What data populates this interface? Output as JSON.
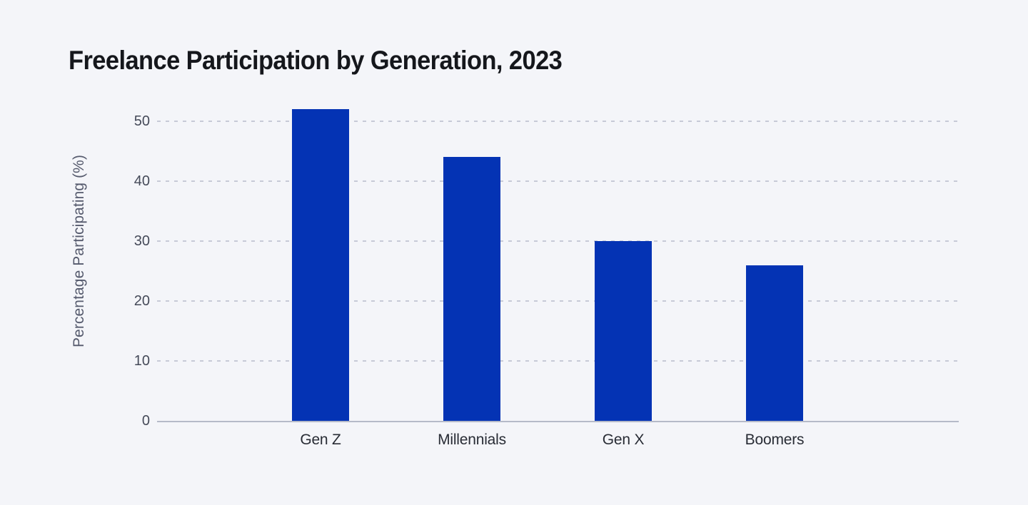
{
  "page": {
    "background_color": "#f4f5f9"
  },
  "chart_data": {
    "type": "bar",
    "title": "Freelance Participation by Generation, 2023",
    "title_color": "#15171c",
    "categories": [
      "Gen Z",
      "Millennials",
      "Gen X",
      "Boomers"
    ],
    "values": [
      52,
      44,
      30,
      26
    ],
    "xlabel": "",
    "ylabel": "Percentage Participating (%)",
    "ylabel_color": "#555a6d",
    "yticks": [
      0,
      10,
      20,
      30,
      40,
      50
    ],
    "ylim": [
      0,
      55
    ],
    "grid": "horizontal-dashed",
    "gridline_color": "#c7cad7",
    "axis_line_color": "#b5bac8",
    "tick_label_color": "#454a59",
    "category_label_color": "#282c35",
    "bar_color": "#0433b4",
    "legend": "none"
  }
}
